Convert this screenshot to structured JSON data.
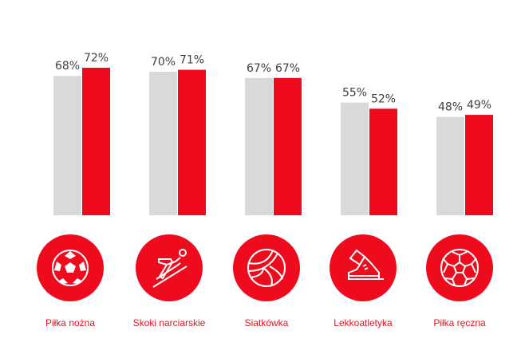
{
  "chart_data": {
    "type": "bar",
    "title": "",
    "xlabel": "",
    "ylabel": "",
    "ylim": [
      0,
      100
    ],
    "grid": false,
    "categories": [
      "Piłka nożna",
      "Skoki narciarskie",
      "Siatkówka",
      "Lekkoatletyka",
      "Piłka ręczna"
    ],
    "icons": [
      "soccer-ball-icon",
      "ski-jumper-icon",
      "volleyball-icon",
      "running-shoe-icon",
      "handball-icon"
    ],
    "series": [
      {
        "name": "gray",
        "color": "#d9d9d9",
        "values": [
          68,
          70,
          67,
          55,
          48
        ]
      },
      {
        "name": "red",
        "color": "#f00a1e",
        "values": [
          72,
          71,
          67,
          52,
          49
        ]
      }
    ],
    "value_labels": [
      [
        "68%",
        "70%",
        "67%",
        "55%",
        "48%"
      ],
      [
        "72%",
        "71%",
        "67%",
        "52%",
        "49%"
      ]
    ],
    "accent": "#f00a1e"
  }
}
